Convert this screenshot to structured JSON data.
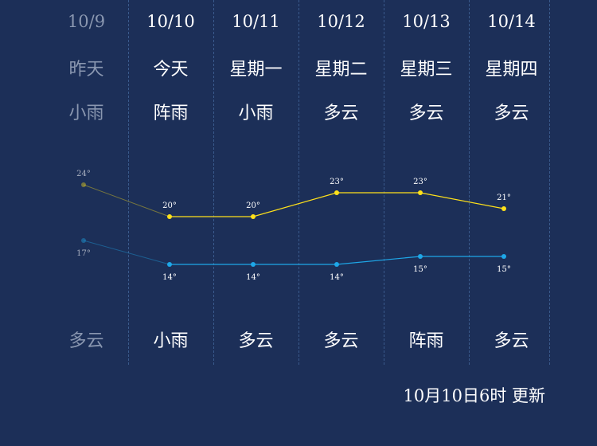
{
  "days": [
    {
      "date": "10/9",
      "day": "昨天",
      "weather_top": "小雨",
      "weather_bottom": "多云",
      "past": true
    },
    {
      "date": "10/10",
      "day": "今天",
      "weather_top": "阵雨",
      "weather_bottom": "小雨",
      "past": false
    },
    {
      "date": "10/11",
      "day": "星期一",
      "weather_top": "小雨",
      "weather_bottom": "多云",
      "past": false
    },
    {
      "date": "10/12",
      "day": "星期二",
      "weather_top": "多云",
      "weather_bottom": "多云",
      "past": false
    },
    {
      "date": "10/13",
      "day": "星期三",
      "weather_top": "多云",
      "weather_bottom": "阵雨",
      "past": false
    },
    {
      "date": "10/14",
      "day": "星期四",
      "weather_top": "多云",
      "weather_bottom": "多云",
      "past": false
    }
  ],
  "chart_data": {
    "type": "line",
    "categories": [
      "10/9",
      "10/10",
      "10/11",
      "10/12",
      "10/13",
      "10/14"
    ],
    "series": [
      {
        "values": [
          24,
          20,
          20,
          23,
          23,
          21
        ],
        "color": "#ffe11a"
      },
      {
        "values": [
          17,
          14,
          14,
          14,
          15,
          15
        ],
        "color": "#1ea7e8"
      }
    ],
    "unit": "°",
    "dim_first_point": true
  },
  "update_text": "10月10日6时 更新",
  "colors": {
    "background": "#1c2f58",
    "divider": "#3a5a8c",
    "past_text": "#8a97b0",
    "high_line": "#ffe11a",
    "low_line": "#1ea7e8"
  }
}
